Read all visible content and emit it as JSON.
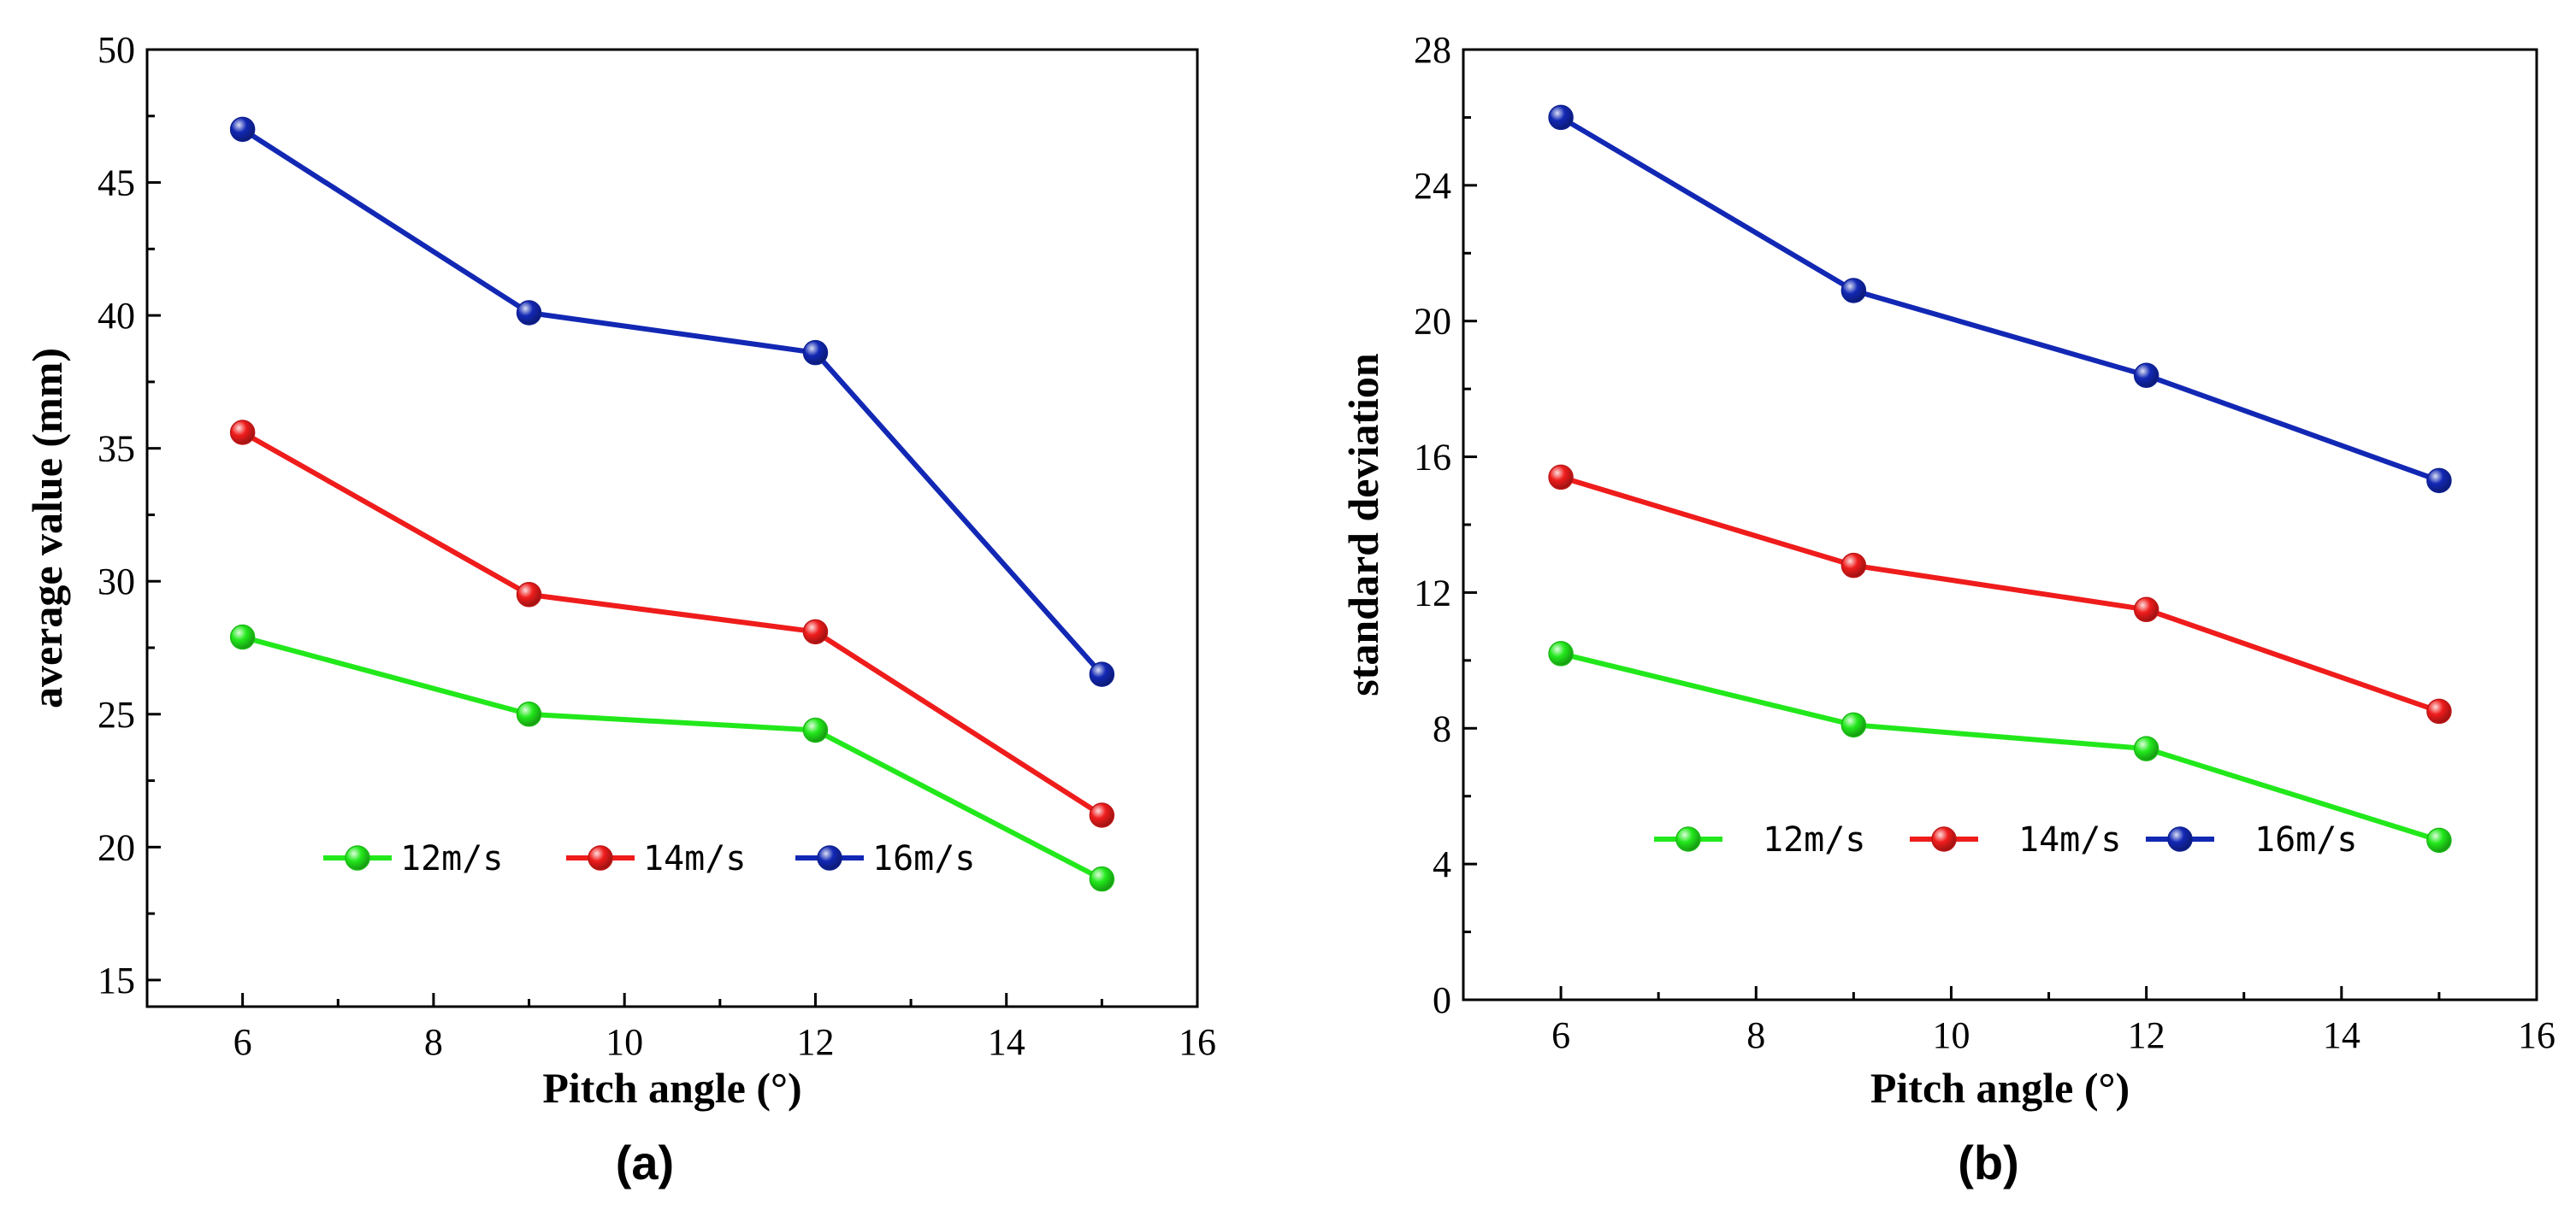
{
  "chart_data": [
    {
      "type": "line",
      "panel_label": "(a)",
      "xlabel": "Pitch angle (°)",
      "ylabel": "average value (mm)",
      "xlim": [
        5,
        16
      ],
      "ylim": [
        14,
        50
      ],
      "xticks": [
        6,
        8,
        10,
        12,
        14,
        16
      ],
      "yticks": [
        15,
        20,
        25,
        30,
        35,
        40,
        45,
        50
      ],
      "x": [
        6,
        9,
        12,
        15
      ],
      "legend_position": "lower-center",
      "series": [
        {
          "name": "12m/s",
          "color": "#22e81b",
          "values": [
            27.9,
            25.0,
            24.4,
            18.8
          ]
        },
        {
          "name": "14m/s",
          "color": "#ef1c1c",
          "values": [
            35.6,
            29.5,
            28.1,
            21.2
          ]
        },
        {
          "name": "16m/s",
          "color": "#1228b4",
          "values": [
            47.0,
            40.1,
            38.6,
            26.5
          ]
        }
      ]
    },
    {
      "type": "line",
      "panel_label": "(b)",
      "xlabel": "Pitch angle (°)",
      "ylabel": "standard deviation",
      "xlim": [
        5,
        16
      ],
      "ylim": [
        0,
        28
      ],
      "xticks": [
        6,
        8,
        10,
        12,
        14,
        16
      ],
      "yticks": [
        0,
        4,
        8,
        12,
        16,
        20,
        24,
        28
      ],
      "x": [
        6,
        9,
        12,
        15
      ],
      "legend_position": "lower-center",
      "series": [
        {
          "name": "12m/s",
          "color": "#22e81b",
          "values": [
            10.2,
            8.1,
            7.4,
            4.7
          ]
        },
        {
          "name": "14m/s",
          "color": "#ef1c1c",
          "values": [
            15.4,
            12.8,
            11.5,
            8.5
          ]
        },
        {
          "name": "16m/s",
          "color": "#1228b4",
          "values": [
            26.0,
            20.9,
            18.4,
            15.3
          ]
        }
      ]
    }
  ]
}
